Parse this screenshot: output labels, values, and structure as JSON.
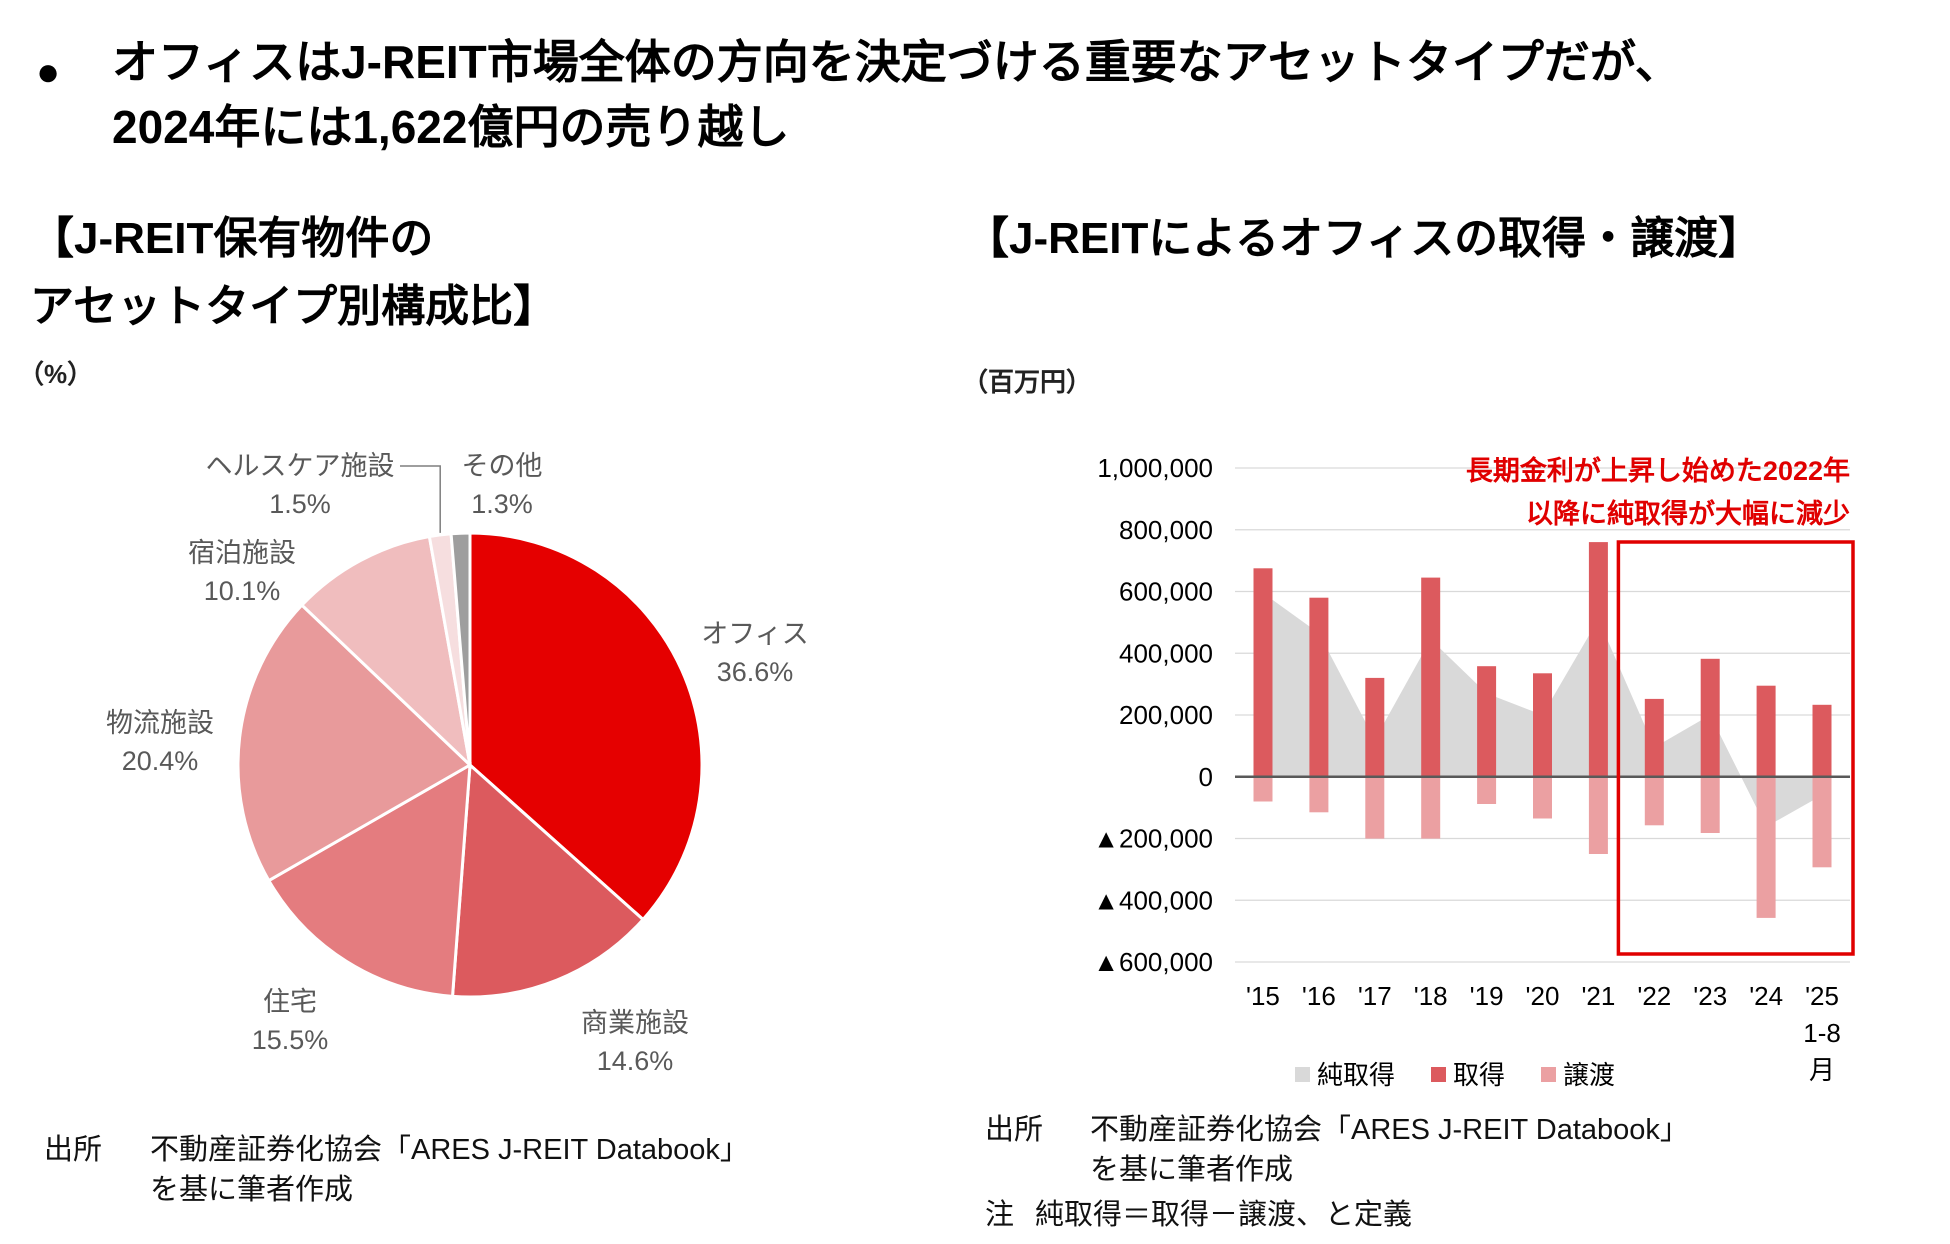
{
  "headline": {
    "bullet": "●",
    "line1": "オフィスはJ-REIT市場全体の方向を決定づける重要なアセットタイプだが、",
    "line2": "2024年には1,622億円の売り越し"
  },
  "left": {
    "title_line1": "【J-REIT保有物件の",
    "title_line2": "アセットタイプ別構成比】",
    "unit": "（%）",
    "source_label": "出所",
    "source_line1": "不動産証券化協会「ARES J-REIT Databook」",
    "source_line2": "を基に筆者作成"
  },
  "right": {
    "title": "【J-REITによるオフィスの取得・譲渡】",
    "unit": "（百万円）",
    "annotation_line1": "長期金利が上昇し始めた2022年",
    "annotation_line2": "以降に純取得が大幅に減少",
    "source_label": "出所",
    "source_line1": "不動産証券化協会「ARES J-REIT Databook」",
    "source_line2": "を基に筆者作成",
    "note_label": "注",
    "note_text": "純取得＝取得－譲渡、と定義"
  },
  "chart_data": [
    {
      "type": "pie",
      "unit": "%",
      "slices": [
        {
          "label": "オフィス",
          "value": 36.6,
          "value_label": "36.6%",
          "color": "#e50000"
        },
        {
          "label": "商業施設",
          "value": 14.6,
          "value_label": "14.6%",
          "color": "#dc5a5e"
        },
        {
          "label": "住宅",
          "value": 15.5,
          "value_label": "15.5%",
          "color": "#e47c7f"
        },
        {
          "label": "物流施設",
          "value": 20.4,
          "value_label": "20.4%",
          "color": "#e89a9b"
        },
        {
          "label": "宿泊施設",
          "value": 10.1,
          "value_label": "10.1%",
          "color": "#f0bdbe"
        },
        {
          "label": "ヘルスケア施設",
          "value": 1.5,
          "value_label": "1.5%",
          "color": "#f6dedf"
        },
        {
          "label": "その他",
          "value": 1.3,
          "value_label": "1.3%",
          "color": "#9e9e9e"
        }
      ]
    },
    {
      "type": "bar",
      "unit": "百万円",
      "categories": [
        "'15",
        "'16",
        "'17",
        "'18",
        "'19",
        "'20",
        "'21",
        "'22",
        "'23",
        "'24",
        "'25"
      ],
      "category_sublabel": {
        "index": 10,
        "lines": [
          "1-8",
          "月"
        ]
      },
      "ylim": [
        -600000,
        1000000
      ],
      "yticks": [
        1000000,
        800000,
        600000,
        400000,
        200000,
        0,
        -200000,
        -400000,
        -600000
      ],
      "ytick_labels": [
        "1,000,000",
        "800,000",
        "600,000",
        "400,000",
        "200,000",
        "0",
        "▲200,000",
        "▲400,000",
        "▲600,000"
      ],
      "grid": true,
      "legend_position": "bottom",
      "series": [
        {
          "name": "純取得",
          "kind": "area",
          "color": "#d9d9d9",
          "values": [
            595000,
            465000,
            120000,
            445000,
            270000,
            200000,
            510000,
            95000,
            200000,
            -162000,
            -60000
          ]
        },
        {
          "name": "取得",
          "kind": "bar",
          "color": "#dc5a5e",
          "values": [
            675000,
            580000,
            320000,
            645000,
            358000,
            335000,
            760000,
            252000,
            382000,
            295000,
            233000
          ]
        },
        {
          "name": "譲渡",
          "kind": "bar",
          "color": "#eba0a2",
          "values": [
            -80000,
            -115000,
            -200000,
            -200000,
            -88000,
            -135000,
            -250000,
            -157000,
            -182000,
            -457000,
            -293000
          ]
        }
      ],
      "highlight_box": {
        "from_category": "'22",
        "to_category": "'25",
        "color": "#e00000"
      },
      "annotation_color": "#e00000"
    }
  ]
}
